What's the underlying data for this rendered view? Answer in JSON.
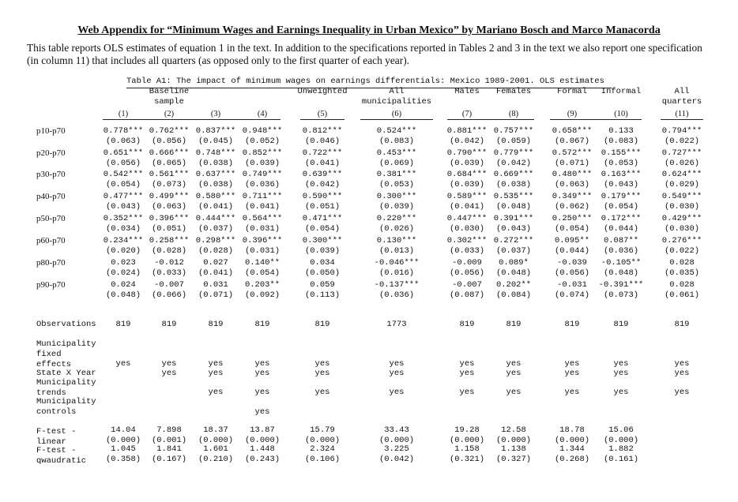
{
  "title": "Web Appendix for “Minimum Wages and Earnings Inequality in Urban Mexico” by Mariano Bosch and Marco Manacorda",
  "intro": [
    "This table reports OLS estimates of equation 1 in the text. In addition to the specifications reported in Tables 2 and 3 in the text we also report one specification",
    "(in column 11) that includes all quarters (as opposed only to the first quarter of each year)."
  ],
  "table_caption": "Table A1: The impact of minimum wages on earnings differentials: Mexico 1989-2001. OLS estimates",
  "group_headers": [
    {
      "lines": [
        "Baseline",
        "sample"
      ]
    },
    {
      "lines": [
        "Unweighted"
      ]
    },
    {
      "lines": [
        "All",
        "municipalities"
      ]
    },
    {
      "lines": [
        "Males"
      ]
    },
    {
      "lines": [
        "Females"
      ]
    },
    {
      "lines": [
        "Formal"
      ]
    },
    {
      "lines": [
        "Informal"
      ]
    },
    {
      "lines": [
        "All",
        "quarters"
      ]
    }
  ],
  "columns": [
    "(1)",
    "(2)",
    "(3)",
    "(4)",
    "(5)",
    "(6)",
    "(7)",
    "(8)",
    "(9)",
    "(10)",
    "(11)"
  ],
  "rows": [
    {
      "label": "p10-p70",
      "coef": [
        "0.778***",
        "0.762***",
        "0.837***",
        "0.948***",
        "0.812***",
        "0.524***",
        "0.881***",
        "0.757***",
        "0.658***",
        "0.133",
        "0.794***"
      ],
      "se": [
        "(0.063)",
        "(0.056)",
        "(0.045)",
        "(0.052)",
        "(0.046)",
        "(0.083)",
        "(0.042)",
        "(0.059)",
        "(0.067)",
        "(0.083)",
        "(0.022)"
      ]
    },
    {
      "label": "p20-p70",
      "coef": [
        "0.651***",
        "0.666***",
        "0.748***",
        "0.852***",
        "0.722***",
        "0.453***",
        "0.790***",
        "0.779***",
        "0.572***",
        "0.155***",
        "0.727***"
      ],
      "se": [
        "(0.056)",
        "(0.065)",
        "(0.038)",
        "(0.039)",
        "(0.041)",
        "(0.069)",
        "(0.039)",
        "(0.042)",
        "(0.071)",
        "(0.053)",
        "(0.026)"
      ]
    },
    {
      "label": "p30-p70",
      "coef": [
        "0.542***",
        "0.561***",
        "0.637***",
        "0.749***",
        "0.639***",
        "0.381***",
        "0.684***",
        "0.669***",
        "0.480***",
        "0.163***",
        "0.624***"
      ],
      "se": [
        "(0.054)",
        "(0.073)",
        "(0.038)",
        "(0.036)",
        "(0.042)",
        "(0.053)",
        "(0.039)",
        "(0.038)",
        "(0.063)",
        "(0.043)",
        "(0.029)"
      ]
    },
    {
      "label": "p40-p70",
      "coef": [
        "0.477***",
        "0.499***",
        "0.580***",
        "0.711***",
        "0.590***",
        "0.300***",
        "0.589***",
        "0.535***",
        "0.349***",
        "0.179***",
        "0.549***"
      ],
      "se": [
        "(0.043)",
        "(0.063)",
        "(0.041)",
        "(0.041)",
        "(0.051)",
        "(0.039)",
        "(0.041)",
        "(0.048)",
        "(0.062)",
        "(0.054)",
        "(0.030)"
      ]
    },
    {
      "label": "p50-p70",
      "coef": [
        "0.352***",
        "0.396***",
        "0.444***",
        "0.564***",
        "0.471***",
        "0.220***",
        "0.447***",
        "0.391***",
        "0.250***",
        "0.172***",
        "0.429***"
      ],
      "se": [
        "(0.034)",
        "(0.051)",
        "(0.037)",
        "(0.031)",
        "(0.054)",
        "(0.026)",
        "(0.030)",
        "(0.043)",
        "(0.054)",
        "(0.044)",
        "(0.030)"
      ]
    },
    {
      "label": "p60-p70",
      "coef": [
        "0.234***",
        "0.258***",
        "0.298***",
        "0.396***",
        "0.300***",
        "0.130***",
        "0.302***",
        "0.272***",
        "0.095**",
        "0.087**",
        "0.276***"
      ],
      "se": [
        "(0.020)",
        "(0.028)",
        "(0.028)",
        "(0.031)",
        "(0.039)",
        "(0.013)",
        "(0.033)",
        "(0.037)",
        "(0.044)",
        "(0.036)",
        "(0.022)"
      ]
    },
    {
      "label": "p80-p70",
      "coef": [
        "0.023",
        "-0.012",
        "0.027",
        "0.140**",
        "0.034",
        "-0.046***",
        "-0.009",
        "0.089*",
        "-0.039",
        "-0.105**",
        "0.028"
      ],
      "se": [
        "(0.024)",
        "(0.033)",
        "(0.041)",
        "(0.054)",
        "(0.050)",
        "(0.016)",
        "(0.056)",
        "(0.048)",
        "(0.056)",
        "(0.048)",
        "(0.035)"
      ]
    },
    {
      "label": "p90-p70",
      "coef": [
        "0.024",
        "-0.007",
        "0.031",
        "0.203**",
        "0.059",
        "-0.137***",
        "-0.007",
        "0.202**",
        "-0.031",
        "-0.391***",
        "0.028"
      ],
      "se": [
        "(0.048)",
        "(0.066)",
        "(0.071)",
        "(0.092)",
        "(0.113)",
        "(0.036)",
        "(0.087)",
        "(0.084)",
        "(0.074)",
        "(0.073)",
        "(0.061)"
      ]
    }
  ],
  "observations": {
    "label": "Observations",
    "values": [
      "819",
      "819",
      "819",
      "819",
      "819",
      "1773",
      "819",
      "819",
      "819",
      "819",
      "819"
    ]
  },
  "controls": [
    {
      "label": "Municipality\nfixed\neffects",
      "values": [
        "yes",
        "yes",
        "yes",
        "yes",
        "yes",
        "yes",
        "yes",
        "yes",
        "yes",
        "yes",
        "yes"
      ]
    },
    {
      "label": "State X Year",
      "values": [
        "",
        "yes",
        "yes",
        "yes",
        "yes",
        "yes",
        "yes",
        "yes",
        "yes",
        "yes",
        "yes"
      ]
    },
    {
      "label": "Municipality\ntrends",
      "values": [
        "",
        "",
        "yes",
        "yes",
        "yes",
        "yes",
        "yes",
        "yes",
        "yes",
        "yes",
        "yes"
      ]
    },
    {
      "label": "Municipality\ncontrols",
      "values": [
        "",
        "",
        "",
        "yes",
        "",
        "",
        "",
        "",
        "",
        "",
        ""
      ]
    }
  ],
  "ftests": [
    {
      "label": "F-test -\nlinear",
      "stat": [
        "14.04",
        "7.898",
        "18.37",
        "13.87",
        "15.79",
        "33.43",
        "19.28",
        "12.58",
        "18.78",
        "15.06",
        ""
      ],
      "p": [
        "(0.000)",
        "(0.001)",
        "(0.000)",
        "(0.000)",
        "(0.000)",
        "(0.000)",
        "(0.000)",
        "(0.000)",
        "(0.000)",
        "(0.000)",
        ""
      ]
    },
    {
      "label": "F-test -\nqwaudratic",
      "stat": [
        "1.045",
        "1.841",
        "1.601",
        "1.448",
        "2.324",
        "3.225",
        "1.158",
        "1.138",
        "1.344",
        "1.882",
        ""
      ],
      "p": [
        "(0.358)",
        "(0.167)",
        "(0.210)",
        "(0.243)",
        "(0.106)",
        "(0.042)",
        "(0.321)",
        "(0.327)",
        "(0.268)",
        "(0.161)",
        ""
      ]
    }
  ]
}
